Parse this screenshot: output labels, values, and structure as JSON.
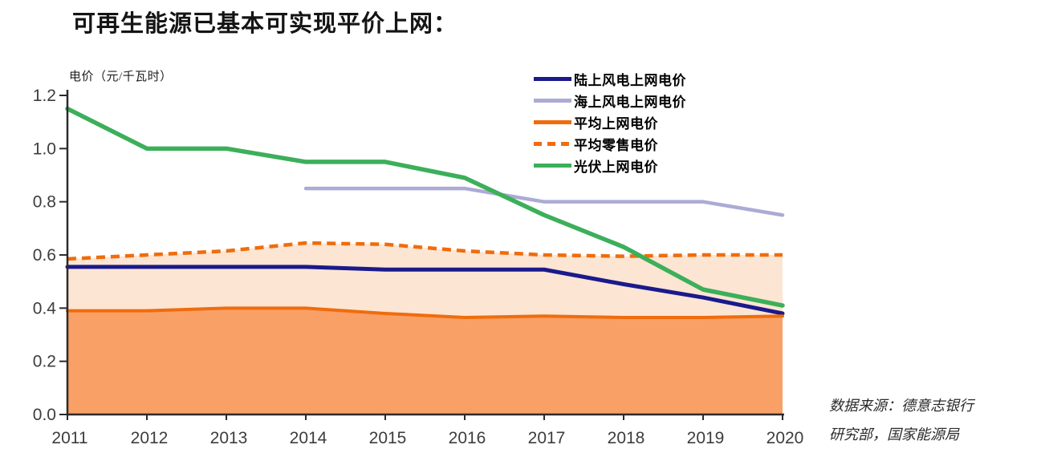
{
  "title": "可再生能源已基本可实现平价上网：",
  "axis_unit_label": "电价（元/千瓦时）",
  "source": {
    "line1": "数据来源：德意志银行",
    "line2": "研究部，国家能源局"
  },
  "colors": {
    "onshore_wind": "#1A1A8C",
    "offshore_wind": "#ACABD5",
    "avg_grid": "#F06C0C",
    "avg_retail": "#F06C0C",
    "solar": "#3CAF5A",
    "avg_grid_area": "#F9A066",
    "avg_retail_area": "#FCE5D3",
    "axis": "#2b2b2b",
    "tick_label": "#3d3d3d"
  },
  "chart_data": {
    "type": "line",
    "title": "可再生能源已基本可实现平价上网",
    "xlabel": "",
    "ylabel": "电价（元/千瓦时）",
    "x": [
      2011,
      2012,
      2013,
      2014,
      2015,
      2016,
      2017,
      2018,
      2019,
      2020
    ],
    "ylim": [
      0,
      1.2
    ],
    "yticks": [
      0.0,
      0.2,
      0.4,
      0.6,
      0.8,
      1.0,
      1.2
    ],
    "grid": false,
    "legend_position": "top-right",
    "series": [
      {
        "name": "陆上风电上网电价",
        "color": "#1A1A8C",
        "style": "solid",
        "values": [
          0.555,
          0.555,
          0.555,
          0.555,
          0.545,
          0.545,
          0.545,
          0.49,
          0.44,
          0.38
        ]
      },
      {
        "name": "海上风电上网电价",
        "color": "#ACABD5",
        "style": "solid",
        "values": [
          null,
          null,
          null,
          0.85,
          0.85,
          0.85,
          0.8,
          0.8,
          0.8,
          0.75
        ]
      },
      {
        "name": "平均上网电价",
        "color": "#F06C0C",
        "style": "solid",
        "area": "#F9A066",
        "values": [
          0.39,
          0.39,
          0.4,
          0.4,
          0.38,
          0.365,
          0.37,
          0.365,
          0.365,
          0.37
        ]
      },
      {
        "name": "平均零售电价",
        "color": "#F06C0C",
        "style": "dashed",
        "area": "#FCE5D3",
        "values": [
          0.585,
          0.6,
          0.615,
          0.645,
          0.64,
          0.615,
          0.6,
          0.595,
          0.6,
          0.6
        ]
      },
      {
        "name": "光伏上网电价",
        "color": "#3CAF5A",
        "style": "solid",
        "values": [
          1.15,
          1.0,
          1.0,
          0.95,
          0.95,
          0.89,
          0.75,
          0.63,
          0.47,
          0.41
        ]
      }
    ]
  }
}
